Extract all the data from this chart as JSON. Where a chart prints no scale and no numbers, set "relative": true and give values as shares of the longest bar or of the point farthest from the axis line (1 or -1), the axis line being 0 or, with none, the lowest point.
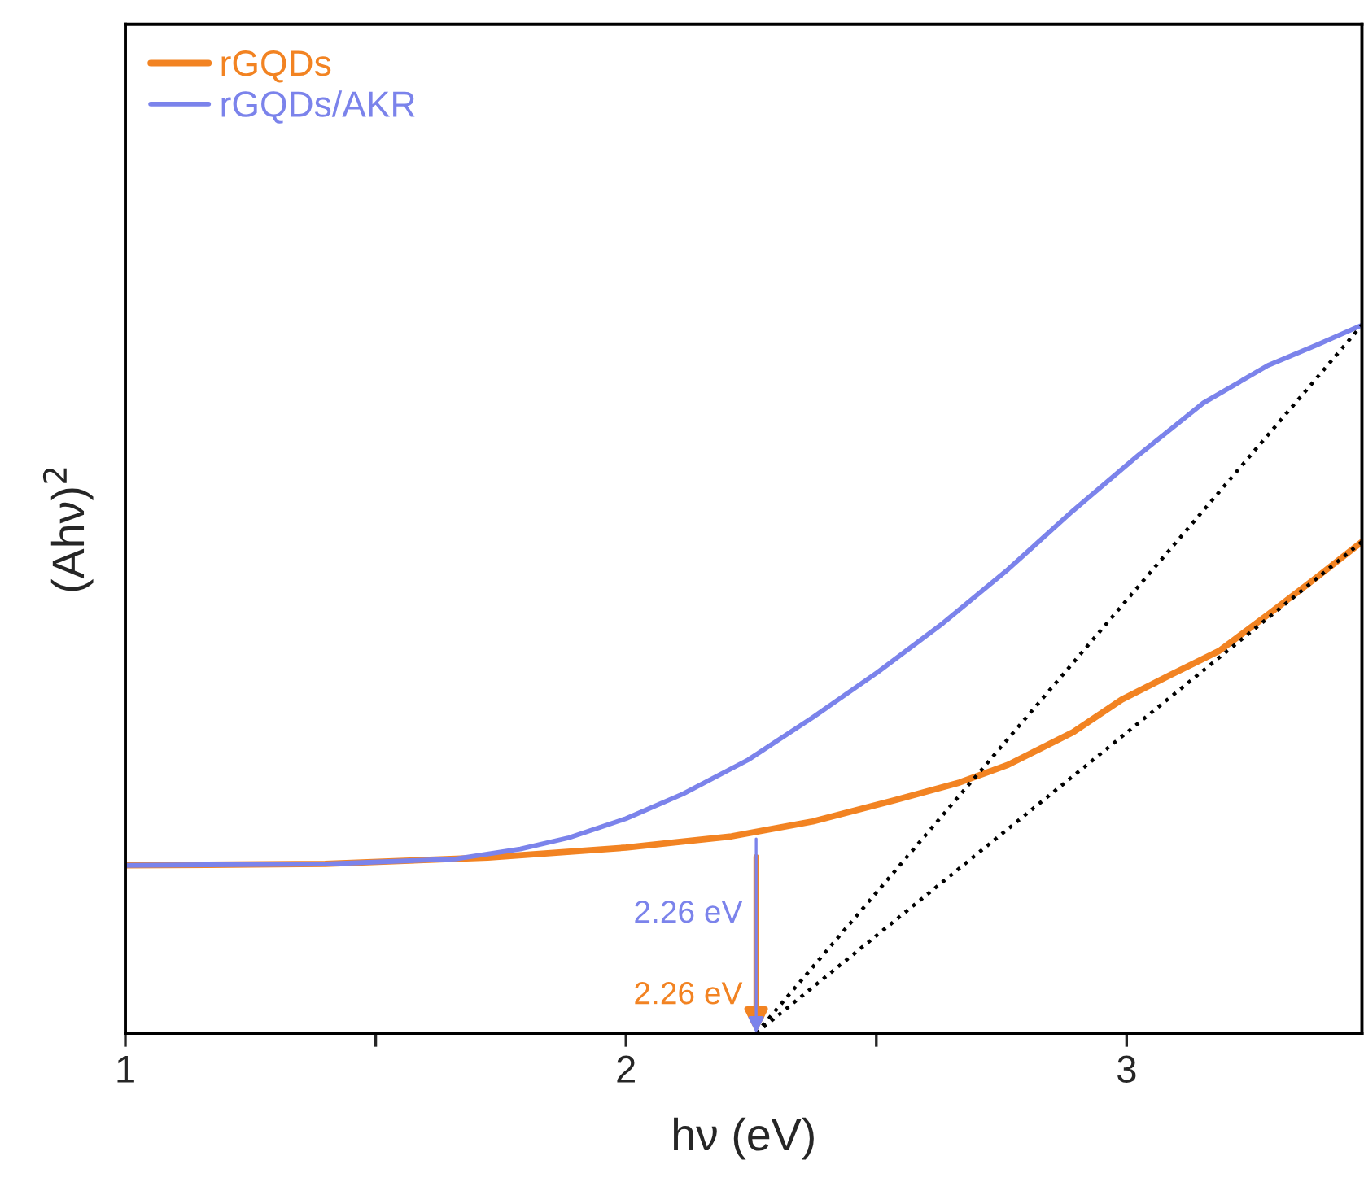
{
  "chart_data": {
    "type": "line",
    "xlabel": "hν (eV)",
    "ylabel": "(Ahν)$^{2}$",
    "relative": true,
    "xlim": [
      1,
      3.47
    ],
    "xticks": [
      1,
      {
        "value": 1.5,
        "label": null
      },
      2,
      {
        "value": 2.5,
        "label": null
      },
      3
    ],
    "legend": "top left",
    "grid": false,
    "line_style": "solid",
    "series": [
      {
        "name": "rGQDs",
        "color": "#f28322",
        "x": [
          1.0,
          1.399,
          1.724,
          2.0,
          2.211,
          2.373,
          2.536,
          2.666,
          2.763,
          2.893,
          2.99,
          3.088,
          3.185,
          3.282,
          3.38,
          3.47
        ],
        "values": [
          0.237,
          0.239,
          0.248,
          0.262,
          0.278,
          0.299,
          0.329,
          0.354,
          0.379,
          0.425,
          0.471,
          0.506,
          0.54,
          0.591,
          0.644,
          0.694
        ]
      },
      {
        "name": "rGQDs/AKR",
        "color": "#7b83eb",
        "x": [
          1.0,
          1.399,
          1.659,
          1.789,
          1.886,
          2.0,
          2.114,
          2.244,
          2.373,
          2.503,
          2.633,
          2.763,
          2.893,
          3.023,
          3.153,
          3.282,
          3.38,
          3.47
        ],
        "values": [
          0.237,
          0.239,
          0.246,
          0.26,
          0.276,
          0.303,
          0.338,
          0.386,
          0.446,
          0.51,
          0.579,
          0.655,
          0.738,
          0.816,
          0.89,
          0.943,
          0.972,
          1.0
        ]
      },
      {
        "color": "#000000",
        "line_style": "dotted",
        "x": [
          2.26,
          3.47
        ],
        "values": [
          0,
          0.694
        ]
      },
      {
        "color": "#000000",
        "line_style": "dotted",
        "x": [
          2.26,
          3.47
        ],
        "values": [
          0,
          1.0
        ]
      }
    ],
    "annotations": [
      {
        "text": "2.26 eV",
        "x": 2.26,
        "y": 0
      },
      "2.26 eV"
    ]
  }
}
